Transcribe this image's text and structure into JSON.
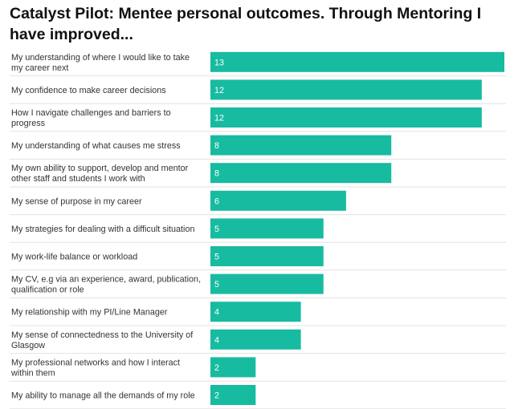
{
  "chart_data": {
    "type": "bar",
    "orientation": "horizontal",
    "title": "Catalyst Pilot: Mentee personal outcomes. Through Mentoring I have improved...",
    "xlabel": "",
    "ylabel": "",
    "xlim": [
      0,
      13
    ],
    "bar_color": "#17bba0",
    "categories": [
      "My understanding of where I would like to take my career next",
      "My confidence to make career decisions",
      "How I navigate challenges and barriers to progress",
      "My understanding of what causes me stress",
      "My own ability to support, develop and mentor other staff and students I work with",
      "My sense of purpose in my career",
      "My strategies for dealing with a difficult situation",
      "My work-life balance or workload",
      "My CV, e.g via an experience, award, publication, qualification or role",
      "My relationship with my PI/Line Manager",
      "My sense of connectedness to the University of Glasgow",
      "My professional networks and how I interact within them",
      "My ability to manage all the demands of my role"
    ],
    "values": [
      13,
      12,
      12,
      8,
      8,
      6,
      5,
      5,
      5,
      4,
      4,
      2,
      2
    ]
  }
}
